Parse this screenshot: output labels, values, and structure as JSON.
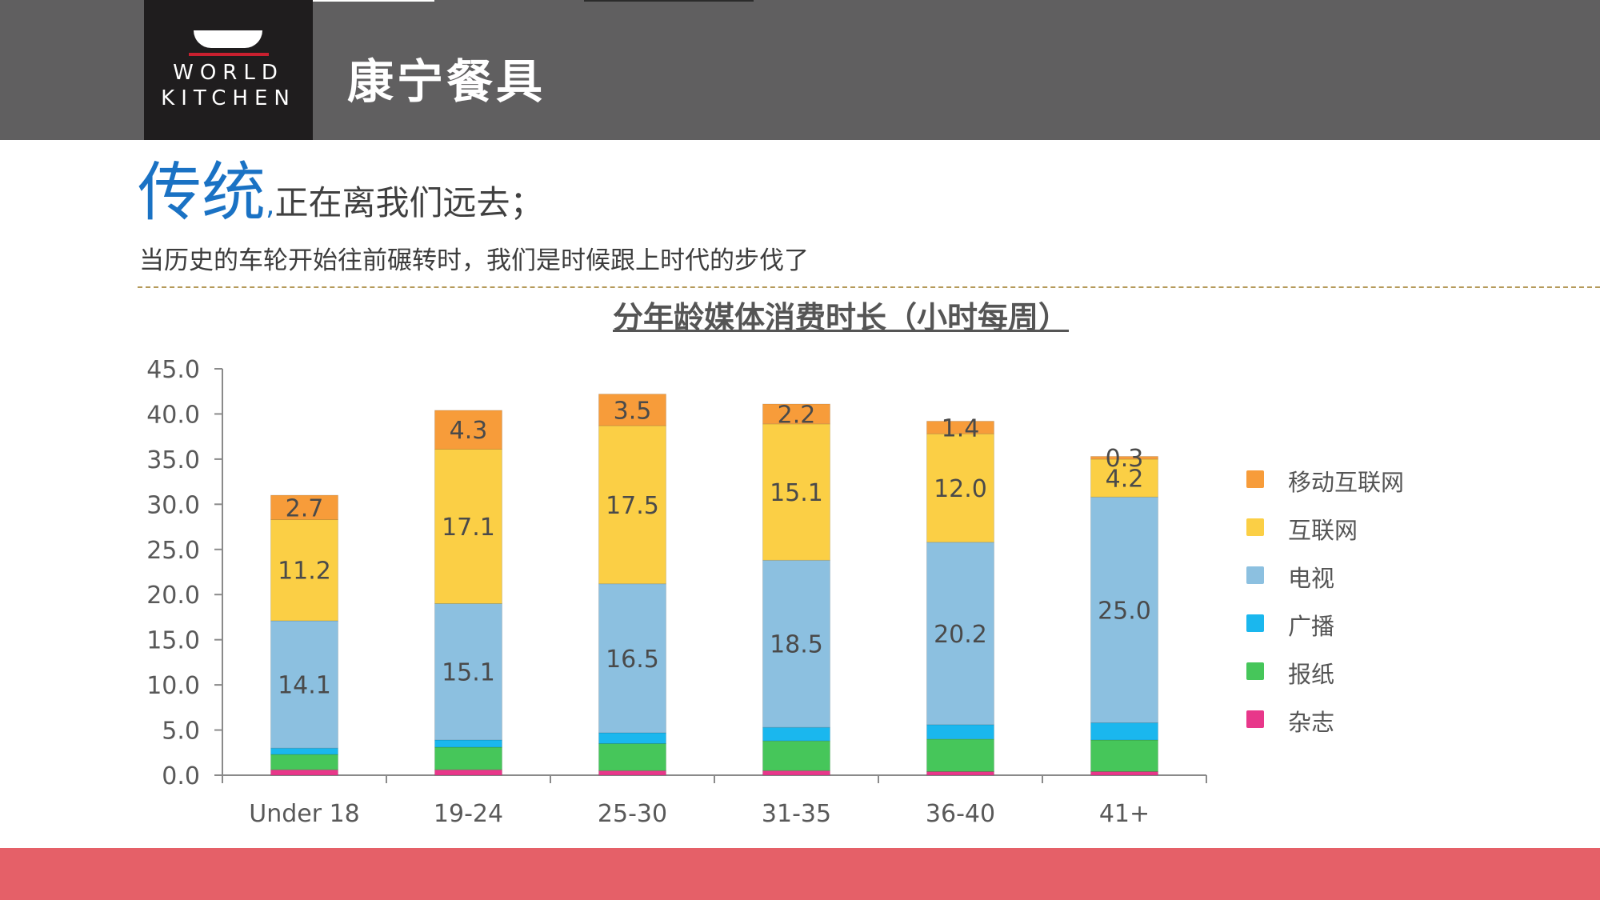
{
  "brand": {
    "logo_line1": "WORLD",
    "logo_line2": "KITCHEN",
    "name": "康宁餐具"
  },
  "headline": {
    "emphasis": "传统",
    "comma": ",",
    "rest": "正在离我们远去；"
  },
  "subline": "当历史的车轮开始往前碾转时，我们是时候跟上时代的步伐了",
  "colors": {
    "top_bar": "#605f60",
    "bottom_bar": "#e56068",
    "headline_accent": "#1a72c4"
  },
  "chart_data": {
    "type": "bar",
    "stacked": true,
    "title": "分年龄媒体消费时长（小时每周）",
    "categories": [
      "Under 18",
      "19-24",
      "25-30",
      "31-35",
      "36-40",
      "41+"
    ],
    "ylim": [
      0,
      45
    ],
    "yticks": [
      "0.0",
      "5.0",
      "10.0",
      "15.0",
      "20.0",
      "25.0",
      "30.0",
      "35.0",
      "40.0",
      "45.0"
    ],
    "grid": false,
    "legend_position": "right",
    "series": [
      {
        "name": "杂志",
        "color": "#e8378a",
        "values": [
          0.6,
          0.6,
          0.5,
          0.5,
          0.4,
          0.4
        ],
        "labels": [
          "",
          "",
          "",
          "",
          "",
          ""
        ]
      },
      {
        "name": "报纸",
        "color": "#46c65a",
        "values": [
          1.7,
          2.5,
          3.0,
          3.3,
          3.6,
          3.5
        ],
        "labels": [
          "",
          "",
          "",
          "",
          "",
          ""
        ]
      },
      {
        "name": "广播",
        "color": "#1ab7ee",
        "values": [
          0.7,
          0.8,
          1.2,
          1.5,
          1.6,
          1.9
        ],
        "labels": [
          "",
          "",
          "",
          "",
          "",
          ""
        ]
      },
      {
        "name": "电视",
        "color": "#8cc0e0",
        "values": [
          14.1,
          15.1,
          16.5,
          18.5,
          20.2,
          25.0
        ],
        "labels": [
          "14.1",
          "15.1",
          "16.5",
          "18.5",
          "20.2",
          "25.0"
        ]
      },
      {
        "name": "互联网",
        "color": "#fbcf45",
        "values": [
          11.2,
          17.1,
          17.5,
          15.1,
          12.0,
          4.2
        ],
        "labels": [
          "11.2",
          "17.1",
          "17.5",
          "15.1",
          "12.0",
          "4.2"
        ]
      },
      {
        "name": "移动互联网",
        "color": "#f79c3a",
        "values": [
          2.7,
          4.3,
          3.5,
          2.2,
          1.4,
          0.3
        ],
        "labels": [
          "2.7",
          "4.3",
          "3.5",
          "2.2",
          "1.4",
          "0.3"
        ]
      }
    ]
  }
}
